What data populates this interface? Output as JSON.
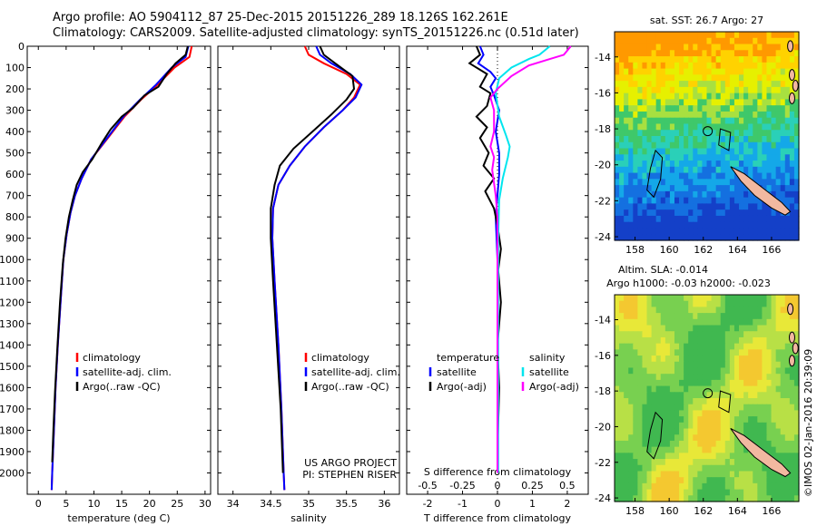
{
  "header": {
    "line1": "Argo profile: AO 5904112_87 25-Dec-2015 20151226_289 18.126S 162.261E",
    "line2": "Climatology: CARS2009. Satellite-adjusted climatology: synTS_20151226.nc (0.51d later)"
  },
  "footer_stamp": "©IMOS 02-Jan-2016 20:39:09",
  "project_note": [
    "US ARGO PROJECT",
    "PI: STEPHEN RISER"
  ],
  "colors": {
    "climatology": "#ff0000",
    "satellite": "#0000ff",
    "argo": "#000000",
    "sat_salinity": "#00e5ee",
    "argo_adj_salinity": "#ff00ff",
    "land": "#f2b8a0"
  },
  "chart_data": [
    {
      "type": "line",
      "id": "temperature",
      "xlabel": "temperature (deg C)",
      "ylabel": "",
      "xlim": [
        -2,
        31
      ],
      "ylim": [
        2100,
        0
      ],
      "xticks": [
        0,
        5,
        10,
        15,
        20,
        25,
        30
      ],
      "yticks": [
        0,
        100,
        200,
        300,
        400,
        500,
        600,
        700,
        800,
        900,
        1000,
        1100,
        1200,
        1300,
        1400,
        1500,
        1600,
        1700,
        1800,
        1900,
        2000
      ],
      "legend": [
        "climatology",
        "satellite-adj. clim.",
        "Argo(..raw -QC)"
      ],
      "series": [
        {
          "name": "climatology",
          "color": "#ff0000",
          "points": [
            [
              27.6,
              0
            ],
            [
              27.2,
              50
            ],
            [
              24.5,
              100
            ],
            [
              21.5,
              180
            ],
            [
              18.5,
              250
            ],
            [
              15.5,
              330
            ],
            [
              12.5,
              430
            ],
            [
              9.5,
              530
            ],
            [
              7.8,
              620
            ],
            [
              6.6,
              700
            ],
            [
              5.8,
              780
            ],
            [
              5.1,
              880
            ],
            [
              4.5,
              1000
            ],
            [
              4.0,
              1200
            ],
            [
              3.5,
              1400
            ],
            [
              3.1,
              1600
            ],
            [
              2.8,
              1800
            ],
            [
              2.5,
              2000
            ],
            [
              2.4,
              2080
            ]
          ]
        },
        {
          "name": "satellite-adj. clim.",
          "color": "#0000ff",
          "points": [
            [
              27.0,
              0
            ],
            [
              26.5,
              50
            ],
            [
              24.0,
              100
            ],
            [
              21.2,
              180
            ],
            [
              18.3,
              250
            ],
            [
              15.3,
              330
            ],
            [
              12.4,
              430
            ],
            [
              9.5,
              530
            ],
            [
              7.8,
              620
            ],
            [
              6.6,
              700
            ],
            [
              5.8,
              780
            ],
            [
              5.1,
              880
            ],
            [
              4.5,
              1000
            ],
            [
              4.0,
              1200
            ],
            [
              3.5,
              1400
            ],
            [
              3.1,
              1600
            ],
            [
              2.8,
              1800
            ],
            [
              2.5,
              2000
            ],
            [
              2.4,
              2080
            ]
          ]
        },
        {
          "name": "Argo(..raw -QC)",
          "color": "#000000",
          "points": [
            [
              26.9,
              0
            ],
            [
              26.5,
              40
            ],
            [
              24.7,
              80
            ],
            [
              23.1,
              130
            ],
            [
              21.6,
              190
            ],
            [
              19.1,
              230
            ],
            [
              17.0,
              290
            ],
            [
              15.0,
              330
            ],
            [
              13.0,
              390
            ],
            [
              11.5,
              450
            ],
            [
              9.7,
              530
            ],
            [
              8.0,
              590
            ],
            [
              6.9,
              650
            ],
            [
              6.2,
              720
            ],
            [
              5.5,
              800
            ],
            [
              4.9,
              900
            ],
            [
              4.4,
              1020
            ],
            [
              3.9,
              1200
            ],
            [
              3.4,
              1420
            ],
            [
              3.0,
              1620
            ],
            [
              2.7,
              1800
            ],
            [
              2.5,
              1950
            ]
          ]
        }
      ]
    },
    {
      "type": "line",
      "id": "salinity",
      "xlabel": "salinity",
      "ylabel": "",
      "xlim": [
        33.8,
        36.2
      ],
      "ylim": [
        2100,
        0
      ],
      "xticks": [
        34,
        34.5,
        35,
        35.5,
        36
      ],
      "legend": [
        "climatology",
        "satellite-adj. clim.",
        "Argo(..raw -QC)"
      ],
      "series": [
        {
          "name": "climatology",
          "color": "#ff0000",
          "points": [
            [
              34.95,
              0
            ],
            [
              35.0,
              40
            ],
            [
              35.2,
              80
            ],
            [
              35.5,
              130
            ],
            [
              35.68,
              180
            ],
            [
              35.6,
              240
            ],
            [
              35.45,
              300
            ],
            [
              35.2,
              380
            ],
            [
              34.95,
              470
            ],
            [
              34.75,
              560
            ],
            [
              34.6,
              650
            ],
            [
              34.53,
              760
            ],
            [
              34.52,
              900
            ],
            [
              34.55,
              1100
            ],
            [
              34.6,
              1400
            ],
            [
              34.64,
              1700
            ],
            [
              34.67,
              2000
            ],
            [
              34.68,
              2080
            ]
          ]
        },
        {
          "name": "satellite-adj. clim.",
          "color": "#0000ff",
          "points": [
            [
              35.1,
              0
            ],
            [
              35.15,
              40
            ],
            [
              35.3,
              80
            ],
            [
              35.55,
              130
            ],
            [
              35.7,
              180
            ],
            [
              35.62,
              240
            ],
            [
              35.45,
              300
            ],
            [
              35.2,
              380
            ],
            [
              34.95,
              470
            ],
            [
              34.75,
              560
            ],
            [
              34.6,
              650
            ],
            [
              34.53,
              760
            ],
            [
              34.52,
              900
            ],
            [
              34.55,
              1100
            ],
            [
              34.6,
              1400
            ],
            [
              34.64,
              1700
            ],
            [
              34.67,
              2000
            ],
            [
              34.68,
              2080
            ]
          ]
        },
        {
          "name": "Argo(..raw -QC)",
          "color": "#000000",
          "points": [
            [
              35.15,
              0
            ],
            [
              35.2,
              40
            ],
            [
              35.35,
              80
            ],
            [
              35.58,
              140
            ],
            [
              35.6,
              200
            ],
            [
              35.5,
              250
            ],
            [
              35.3,
              320
            ],
            [
              35.05,
              400
            ],
            [
              34.8,
              480
            ],
            [
              34.62,
              560
            ],
            [
              34.55,
              650
            ],
            [
              34.5,
              760
            ],
            [
              34.5,
              900
            ],
            [
              34.53,
              1100
            ],
            [
              34.58,
              1400
            ],
            [
              34.63,
              1700
            ],
            [
              34.66,
              2000
            ]
          ]
        }
      ]
    },
    {
      "type": "line",
      "id": "difference",
      "xlabel": "T difference from climatology",
      "xlabel2": "S difference from climatology",
      "xlim": [
        -2.6,
        2.6
      ],
      "ylim": [
        2100,
        0
      ],
      "xticks_T": [
        -2,
        -1,
        0,
        1,
        2
      ],
      "xticks_S": [
        -0.5,
        -0.25,
        0,
        0.25,
        0.5
      ],
      "legend_headers": [
        "temperature",
        "salinity"
      ],
      "legend": [
        "satellite",
        "Argo(-adj)",
        "satellite",
        "Argo(-adj)"
      ],
      "series": [
        {
          "name": "satellite",
          "color": "#0000ff",
          "points": [
            [
              -0.5,
              0
            ],
            [
              -0.4,
              40
            ],
            [
              -0.55,
              80
            ],
            [
              -0.2,
              120
            ],
            [
              -0.05,
              150
            ],
            [
              -0.2,
              190
            ],
            [
              -0.1,
              230
            ],
            [
              0.05,
              300
            ],
            [
              -0.05,
              400
            ],
            [
              0.05,
              500
            ],
            [
              0.05,
              600
            ],
            [
              -0.05,
              800
            ],
            [
              0.0,
              1000
            ],
            [
              0.0,
              1400
            ],
            [
              0.0,
              2000
            ]
          ]
        },
        {
          "name": "Argo(-adj)",
          "color": "#000000",
          "points": [
            [
              -0.6,
              0
            ],
            [
              -0.5,
              40
            ],
            [
              -0.8,
              80
            ],
            [
              -0.3,
              130
            ],
            [
              -0.5,
              190
            ],
            [
              -0.2,
              220
            ],
            [
              -0.3,
              280
            ],
            [
              -0.6,
              330
            ],
            [
              -0.3,
              380
            ],
            [
              -0.5,
              430
            ],
            [
              -0.25,
              500
            ],
            [
              -0.4,
              560
            ],
            [
              -0.1,
              620
            ],
            [
              -0.35,
              680
            ],
            [
              -0.1,
              760
            ],
            [
              0.0,
              840
            ],
            [
              0.1,
              950
            ],
            [
              0.02,
              1050
            ],
            [
              0.1,
              1200
            ],
            [
              0.0,
              1400
            ],
            [
              0.05,
              1600
            ],
            [
              0.0,
              1900
            ],
            [
              0.0,
              2000
            ]
          ]
        },
        {
          "name": "satellite",
          "color": "#00e5ee",
          "points": [
            [
              1.5,
              0
            ],
            [
              1.2,
              40
            ],
            [
              0.9,
              60
            ],
            [
              0.4,
              100
            ],
            [
              0.05,
              150
            ],
            [
              -0.05,
              220
            ],
            [
              0.05,
              330
            ],
            [
              0.25,
              420
            ],
            [
              0.35,
              470
            ],
            [
              0.3,
              520
            ],
            [
              0.15,
              620
            ],
            [
              0.05,
              720
            ],
            [
              0.02,
              900
            ],
            [
              0.02,
              1400
            ],
            [
              0.02,
              2000
            ]
          ]
        },
        {
          "name": "Argo(-adj)",
          "color": "#ff00ff",
          "points": [
            [
              2.1,
              0
            ],
            [
              1.9,
              40
            ],
            [
              1.5,
              60
            ],
            [
              0.9,
              90
            ],
            [
              0.4,
              140
            ],
            [
              0.0,
              200
            ],
            [
              -0.2,
              240
            ],
            [
              -0.1,
              300
            ],
            [
              -0.1,
              400
            ],
            [
              -0.2,
              470
            ],
            [
              -0.1,
              520
            ],
            [
              -0.15,
              580
            ],
            [
              -0.05,
              700
            ],
            [
              0.0,
              800
            ],
            [
              0.0,
              1000
            ],
            [
              0.0,
              1400
            ],
            [
              0.0,
              2000
            ]
          ]
        }
      ]
    }
  ],
  "maps": [
    {
      "title": "sat. SST: 26.7  Argo: 27",
      "xticks": [
        158,
        160,
        162,
        164,
        166
      ],
      "yticks": [
        -14,
        -16,
        -18,
        -20,
        -22,
        -24
      ]
    },
    {
      "title_line1": "Altim. SLA: -0.014",
      "title_line2": "Argo h1000: -0.03 h2000: -0.023",
      "xticks": [
        158,
        160,
        162,
        164,
        166
      ],
      "yticks": [
        -14,
        -16,
        -18,
        -20,
        -22,
        -24
      ]
    }
  ]
}
